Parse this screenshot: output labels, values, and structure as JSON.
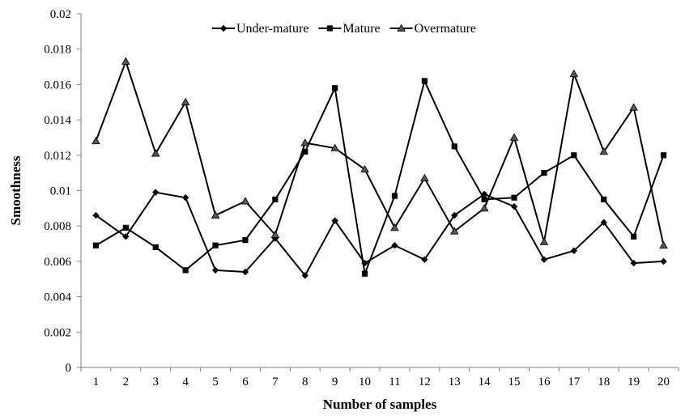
{
  "chart_data": {
    "type": "line",
    "xlabel": "Number of samples",
    "ylabel": "Smoothness",
    "ylim": [
      0,
      0.02
    ],
    "y_ticks": [
      "0",
      "0.002",
      "0.004",
      "0.006",
      "0.008",
      "0.01",
      "0.012",
      "0.014",
      "0.016",
      "0.018",
      "0.02"
    ],
    "categories": [
      "1",
      "2",
      "3",
      "4",
      "5",
      "6",
      "7",
      "8",
      "9",
      "10",
      "11",
      "12",
      "13",
      "14",
      "15",
      "16",
      "17",
      "18",
      "19",
      "20"
    ],
    "grid": false,
    "legend_position": "top",
    "series": [
      {
        "name": "Under-mature",
        "marker": "diamond",
        "color": "#000000",
        "values": [
          0.0086,
          0.0074,
          0.0099,
          0.0096,
          0.0055,
          0.0054,
          0.0073,
          0.0052,
          0.0083,
          0.0059,
          0.0069,
          0.0061,
          0.0086,
          0.0098,
          0.0091,
          0.0061,
          0.0066,
          0.0082,
          0.0059,
          0.006
        ]
      },
      {
        "name": "Mature",
        "marker": "square",
        "color": "#000000",
        "values": [
          0.0069,
          0.0079,
          0.0068,
          0.0055,
          0.0069,
          0.0072,
          0.0095,
          0.0122,
          0.0158,
          0.0053,
          0.0097,
          0.0162,
          0.0125,
          0.0095,
          0.0096,
          0.011,
          0.012,
          0.0095,
          0.0074,
          0.012
        ]
      },
      {
        "name": "Overmature",
        "marker": "triangle",
        "color": "#000000",
        "values": [
          0.0128,
          0.0173,
          0.0121,
          0.015,
          0.0086,
          0.0094,
          0.0075,
          0.0127,
          0.0124,
          0.0112,
          0.0079,
          0.0107,
          0.0077,
          0.009,
          0.013,
          0.0071,
          0.0166,
          0.0122,
          0.0147,
          0.0069
        ]
      }
    ]
  }
}
